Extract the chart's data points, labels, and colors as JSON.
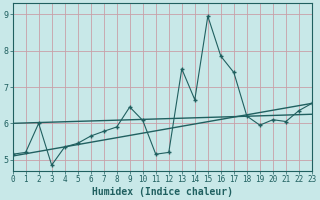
{
  "xlabel": "Humidex (Indice chaleur)",
  "bg_color": "#c8e8e8",
  "grid_color": "#c8a0a8",
  "line_color": "#206060",
  "xlim": [
    0,
    23
  ],
  "ylim": [
    4.7,
    9.3
  ],
  "xticks": [
    0,
    1,
    2,
    3,
    4,
    5,
    6,
    7,
    8,
    9,
    10,
    11,
    12,
    13,
    14,
    15,
    16,
    17,
    18,
    19,
    20,
    21,
    22,
    23
  ],
  "yticks": [
    5,
    6,
    7,
    8,
    9
  ],
  "main_x": [
    0,
    1,
    2,
    3,
    4,
    5,
    6,
    7,
    8,
    9,
    10,
    11,
    12,
    13,
    14,
    15,
    16,
    17,
    18,
    19,
    20,
    21,
    22,
    23
  ],
  "main_y": [
    5.15,
    5.2,
    6.0,
    4.85,
    5.35,
    5.45,
    5.65,
    5.78,
    5.9,
    6.45,
    6.08,
    5.15,
    5.2,
    7.5,
    6.65,
    8.95,
    7.85,
    7.4,
    6.2,
    5.95,
    6.1,
    6.05,
    6.35,
    6.55
  ],
  "trend1_x": [
    0,
    23
  ],
  "trend1_y": [
    5.1,
    6.55
  ],
  "trend2_x": [
    0,
    23
  ],
  "trend2_y": [
    6.0,
    6.25
  ],
  "font_color": "#206060",
  "tick_fontsize": 5.5,
  "label_fontsize": 7
}
